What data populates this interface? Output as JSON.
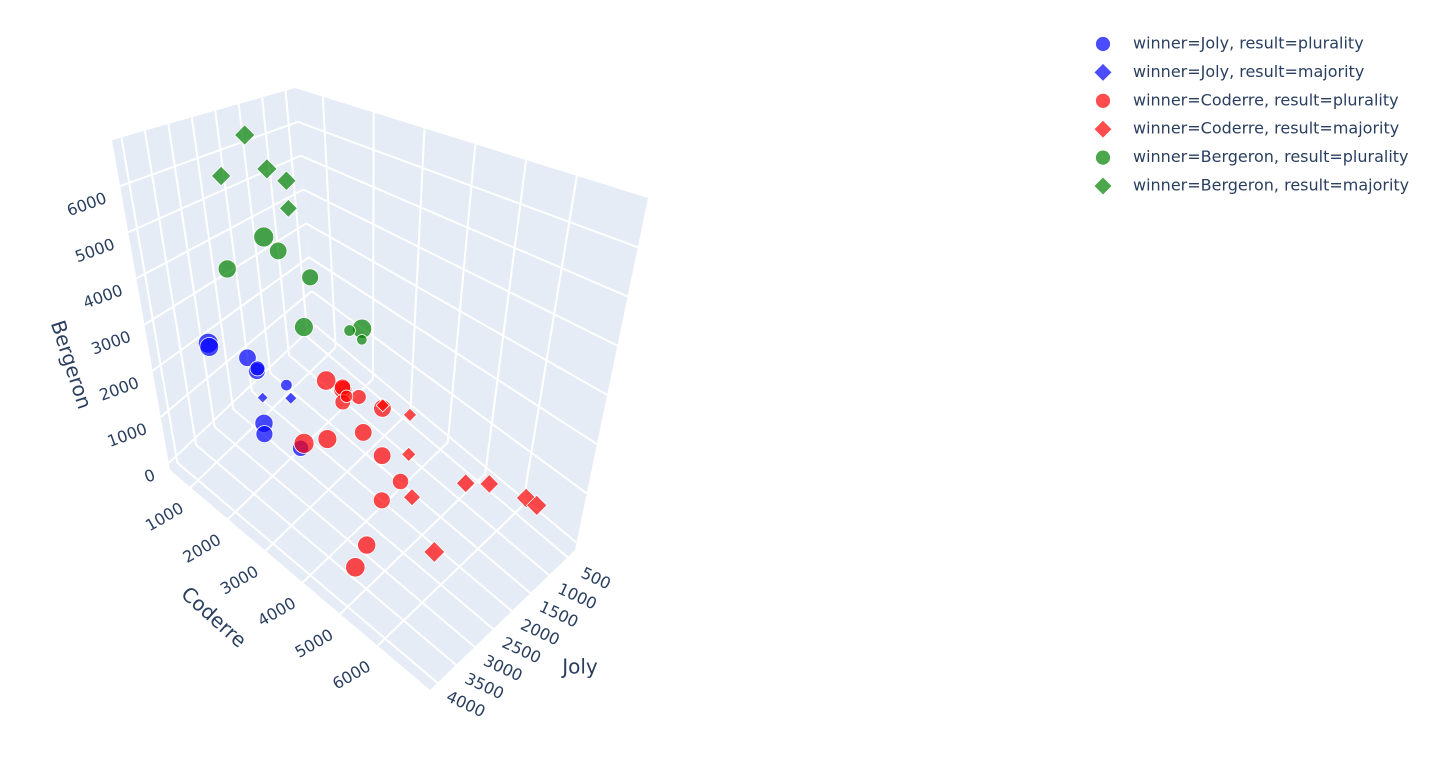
{
  "chart_data": {
    "type": "scatter3d",
    "x_label": "Joly",
    "y_label": "Coderre",
    "z_label": "Bergeron",
    "xlim": [
      300,
      4200
    ],
    "ylim": [
      450,
      7400
    ],
    "zlim": [
      -150,
      7000
    ],
    "xticks": [
      500,
      1000,
      1500,
      2000,
      2500,
      3000,
      3500,
      4000
    ],
    "yticks": [
      1000,
      2000,
      3000,
      4000,
      5000,
      6000
    ],
    "zticks": [
      0,
      1000,
      2000,
      3000,
      4000,
      5000,
      6000
    ],
    "grid": true,
    "legend_position": "top-right",
    "series": [
      {
        "name": "winner=Joly, result=plurality",
        "color": "#0000ff",
        "symbol": "circle",
        "x": [
          3500,
          3400,
          3000,
          2900,
          2700,
          3200,
          3300,
          2800,
          2500
        ],
        "y": [
          1200,
          1100,
          1600,
          1700,
          1500,
          2100,
          2200,
          2600,
          2000
        ],
        "z": [
          2600,
          2400,
          2200,
          1900,
          1700,
          1200,
          1100,
          700,
          1500
        ],
        "sizes": [
          9000,
          8000,
          7000,
          6500,
          5000,
          7500,
          6500,
          6000,
          3000
        ]
      },
      {
        "name": "winner=Joly, result=majority",
        "color": "#0000ff",
        "symbol": "diamond",
        "x": [
          3000,
          2600
        ],
        "y": [
          1900,
          2200
        ],
        "z": [
          1500,
          1400
        ],
        "sizes": [
          2000,
          2500
        ]
      },
      {
        "name": "winner=Coderre, result=plurality",
        "color": "#ff0000",
        "symbol": "circle",
        "x": [
          2500,
          2300,
          2100,
          2000,
          2400,
          2200,
          2700,
          2900,
          2000,
          2400,
          3200,
          3600,
          1800,
          1600,
          1900
        ],
        "y": [
          3000,
          3200,
          3000,
          3300,
          3800,
          3100,
          3200,
          2800,
          3900,
          4300,
          4700,
          4800,
          4200,
          3500,
          2900
        ],
        "z": [
          2200,
          2000,
          1800,
          1700,
          1500,
          1600,
          1200,
          1000,
          800,
          400,
          300,
          200,
          300,
          1300,
          1400
        ],
        "sizes": [
          8500,
          7500,
          6000,
          5000,
          7000,
          5500,
          8000,
          9000,
          7000,
          6500,
          7500,
          8500,
          6000,
          7000,
          3500
        ]
      },
      {
        "name": "winner=Coderre, result=majority",
        "color": "#ff0000",
        "symbol": "diamond",
        "x": [
          1300,
          1500,
          1900,
          1100,
          900,
          500,
          400,
          2300,
          1700
        ],
        "y": [
          3900,
          4100,
          4600,
          5200,
          5600,
          6200,
          6400,
          5600,
          3600
        ],
        "z": [
          1200,
          600,
          300,
          400,
          500,
          300,
          200,
          100,
          1500
        ],
        "sizes": [
          3000,
          3500,
          5000,
          6000,
          6000,
          6500,
          7000,
          7500,
          3000
        ]
      },
      {
        "name": "winner=Bergeron, result=plurality",
        "color": "#008000",
        "symbol": "circle",
        "x": [
          2000,
          1800,
          2600,
          1500,
          2000,
          1200,
          1300,
          1100
        ],
        "y": [
          1200,
          1300,
          900,
          1700,
          2000,
          2600,
          2400,
          2500
        ],
        "z": [
          4200,
          3800,
          3600,
          3200,
          2500,
          2300,
          2200,
          1900
        ],
        "sizes": [
          9000,
          7000,
          7500,
          6500,
          8000,
          8500,
          3000,
          2500
        ]
      },
      {
        "name": "winner=Bergeron, result=majority",
        "color": "#008000",
        "symbol": "diamond",
        "x": [
          1500,
          2200,
          1600,
          1400,
          1500
        ],
        "y": [
          500,
          600,
          1000,
          1200,
          1300
        ],
        "z": [
          6200,
          5500,
          5600,
          5300,
          4700
        ],
        "sizes": [
          7000,
          6500,
          7000,
          6500,
          5500
        ]
      }
    ]
  }
}
